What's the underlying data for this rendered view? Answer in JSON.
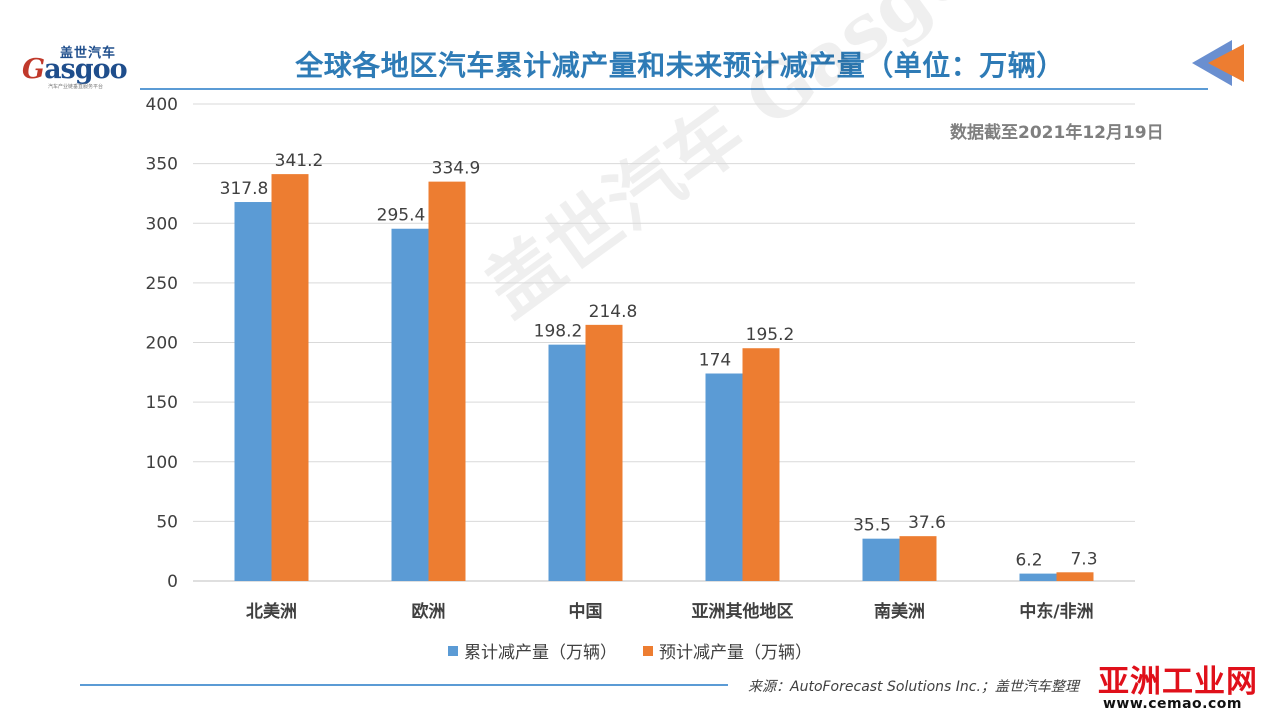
{
  "header": {
    "logo_cn": "盖世汽车",
    "logo_en_initial": "G",
    "logo_en_rest": "asgoo",
    "logo_tagline": "汽车产业链垂直服务平台",
    "title": "全球各地区汽车累计减产量和未来预计减产量（单位：万辆）"
  },
  "note": "数据截至2021年12月19日",
  "footer": {
    "source": "来源：AutoForecast Solutions Inc.；盖世汽车整理",
    "watermark_logo": "亚洲工业网",
    "watermark_url": "www.cemao.com"
  },
  "colors": {
    "series1": "#5b9bd5",
    "series2": "#ed7d31",
    "accent": "#2e7bb6",
    "grid": "#d9d9d9"
  },
  "chart_data": {
    "type": "bar",
    "title": "全球各地区汽车累计减产量和未来预计减产量（单位：万辆）",
    "categories": [
      "北美洲",
      "欧洲",
      "中国",
      "亚洲其他地区",
      "南美洲",
      "中东/非洲"
    ],
    "series": [
      {
        "name": "累计减产量（万辆）",
        "values": [
          317.8,
          295.4,
          198.2,
          174,
          35.5,
          6.2
        ],
        "labels": [
          "317.8",
          "295.4",
          "198.2",
          "174",
          "35.5",
          "6.2"
        ]
      },
      {
        "name": "预计减产量（万辆）",
        "values": [
          341.2,
          334.9,
          214.8,
          195.2,
          37.6,
          7.3
        ],
        "labels": [
          "341.2",
          "334.9",
          "214.8",
          "195.2",
          "37.6",
          "7.3"
        ]
      }
    ],
    "ylim": [
      0,
      400
    ],
    "yticks": [
      0,
      50,
      100,
      150,
      200,
      250,
      300,
      350,
      400
    ],
    "grid": true,
    "legend": "bottom",
    "xlabel": "",
    "ylabel": ""
  }
}
